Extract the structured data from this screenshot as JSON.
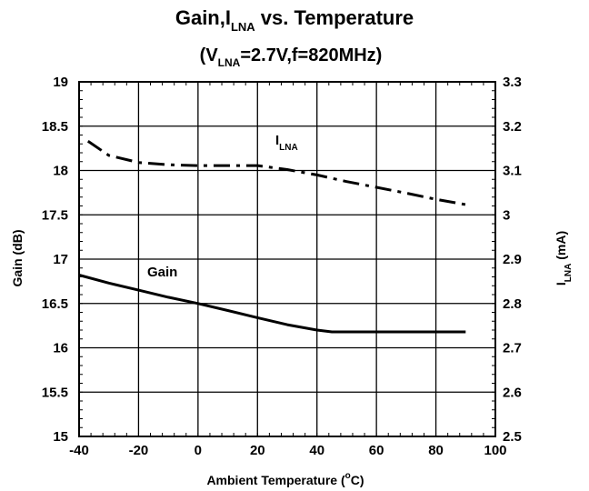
{
  "chart_data": {
    "type": "line",
    "title_main": "Gain,I",
    "title_sub": "LNA",
    "title_rest": " vs. Temperature",
    "subtitle_open": "(V",
    "subtitle_sub": "LNA",
    "subtitle_rest": "=2.7V,f=820MHz)",
    "xlabel": "Ambient Temperature (",
    "xlabel_sup": "o",
    "xlabel_end": "C)",
    "ylabel_left": "Gain (dB)",
    "ylabel_right_main": "I",
    "ylabel_right_sub": "LNA",
    "ylabel_right_end": " (mA)",
    "xlim": [
      -40,
      100
    ],
    "ylim_left": [
      15,
      19
    ],
    "ylim_right": [
      2.5,
      3.3
    ],
    "x_ticks": [
      "-40",
      "-20",
      "0",
      "20",
      "40",
      "60",
      "80",
      "100"
    ],
    "y_left_ticks": [
      "15",
      "15.5",
      "16",
      "16.5",
      "17",
      "17.5",
      "18",
      "18.5",
      "19"
    ],
    "y_right_ticks": [
      "2.5",
      "2.6",
      "2.7",
      "2.8",
      "2.9",
      "3",
      "3.1",
      "3.2",
      "3.3"
    ],
    "grid": true,
    "series": [
      {
        "name": "Gain",
        "axis": "left",
        "style": "solid",
        "x": [
          -40,
          -30,
          -20,
          -10,
          0,
          10,
          20,
          30,
          40,
          45,
          50,
          60,
          70,
          80,
          90
        ],
        "y": [
          16.82,
          16.73,
          16.65,
          16.57,
          16.5,
          16.42,
          16.34,
          16.26,
          16.2,
          16.18,
          16.18,
          16.18,
          16.18,
          16.18,
          16.18
        ]
      },
      {
        "name": "I",
        "name_sub": "LNA",
        "axis": "right",
        "style": "dashdot",
        "x": [
          -37,
          -30,
          -20,
          -10,
          0,
          10,
          20,
          30,
          40,
          50,
          60,
          70,
          80,
          90
        ],
        "y": [
          3.166,
          3.134,
          3.118,
          3.113,
          3.111,
          3.111,
          3.111,
          3.102,
          3.09,
          3.075,
          3.062,
          3.049,
          3.035,
          3.023
        ]
      }
    ]
  }
}
